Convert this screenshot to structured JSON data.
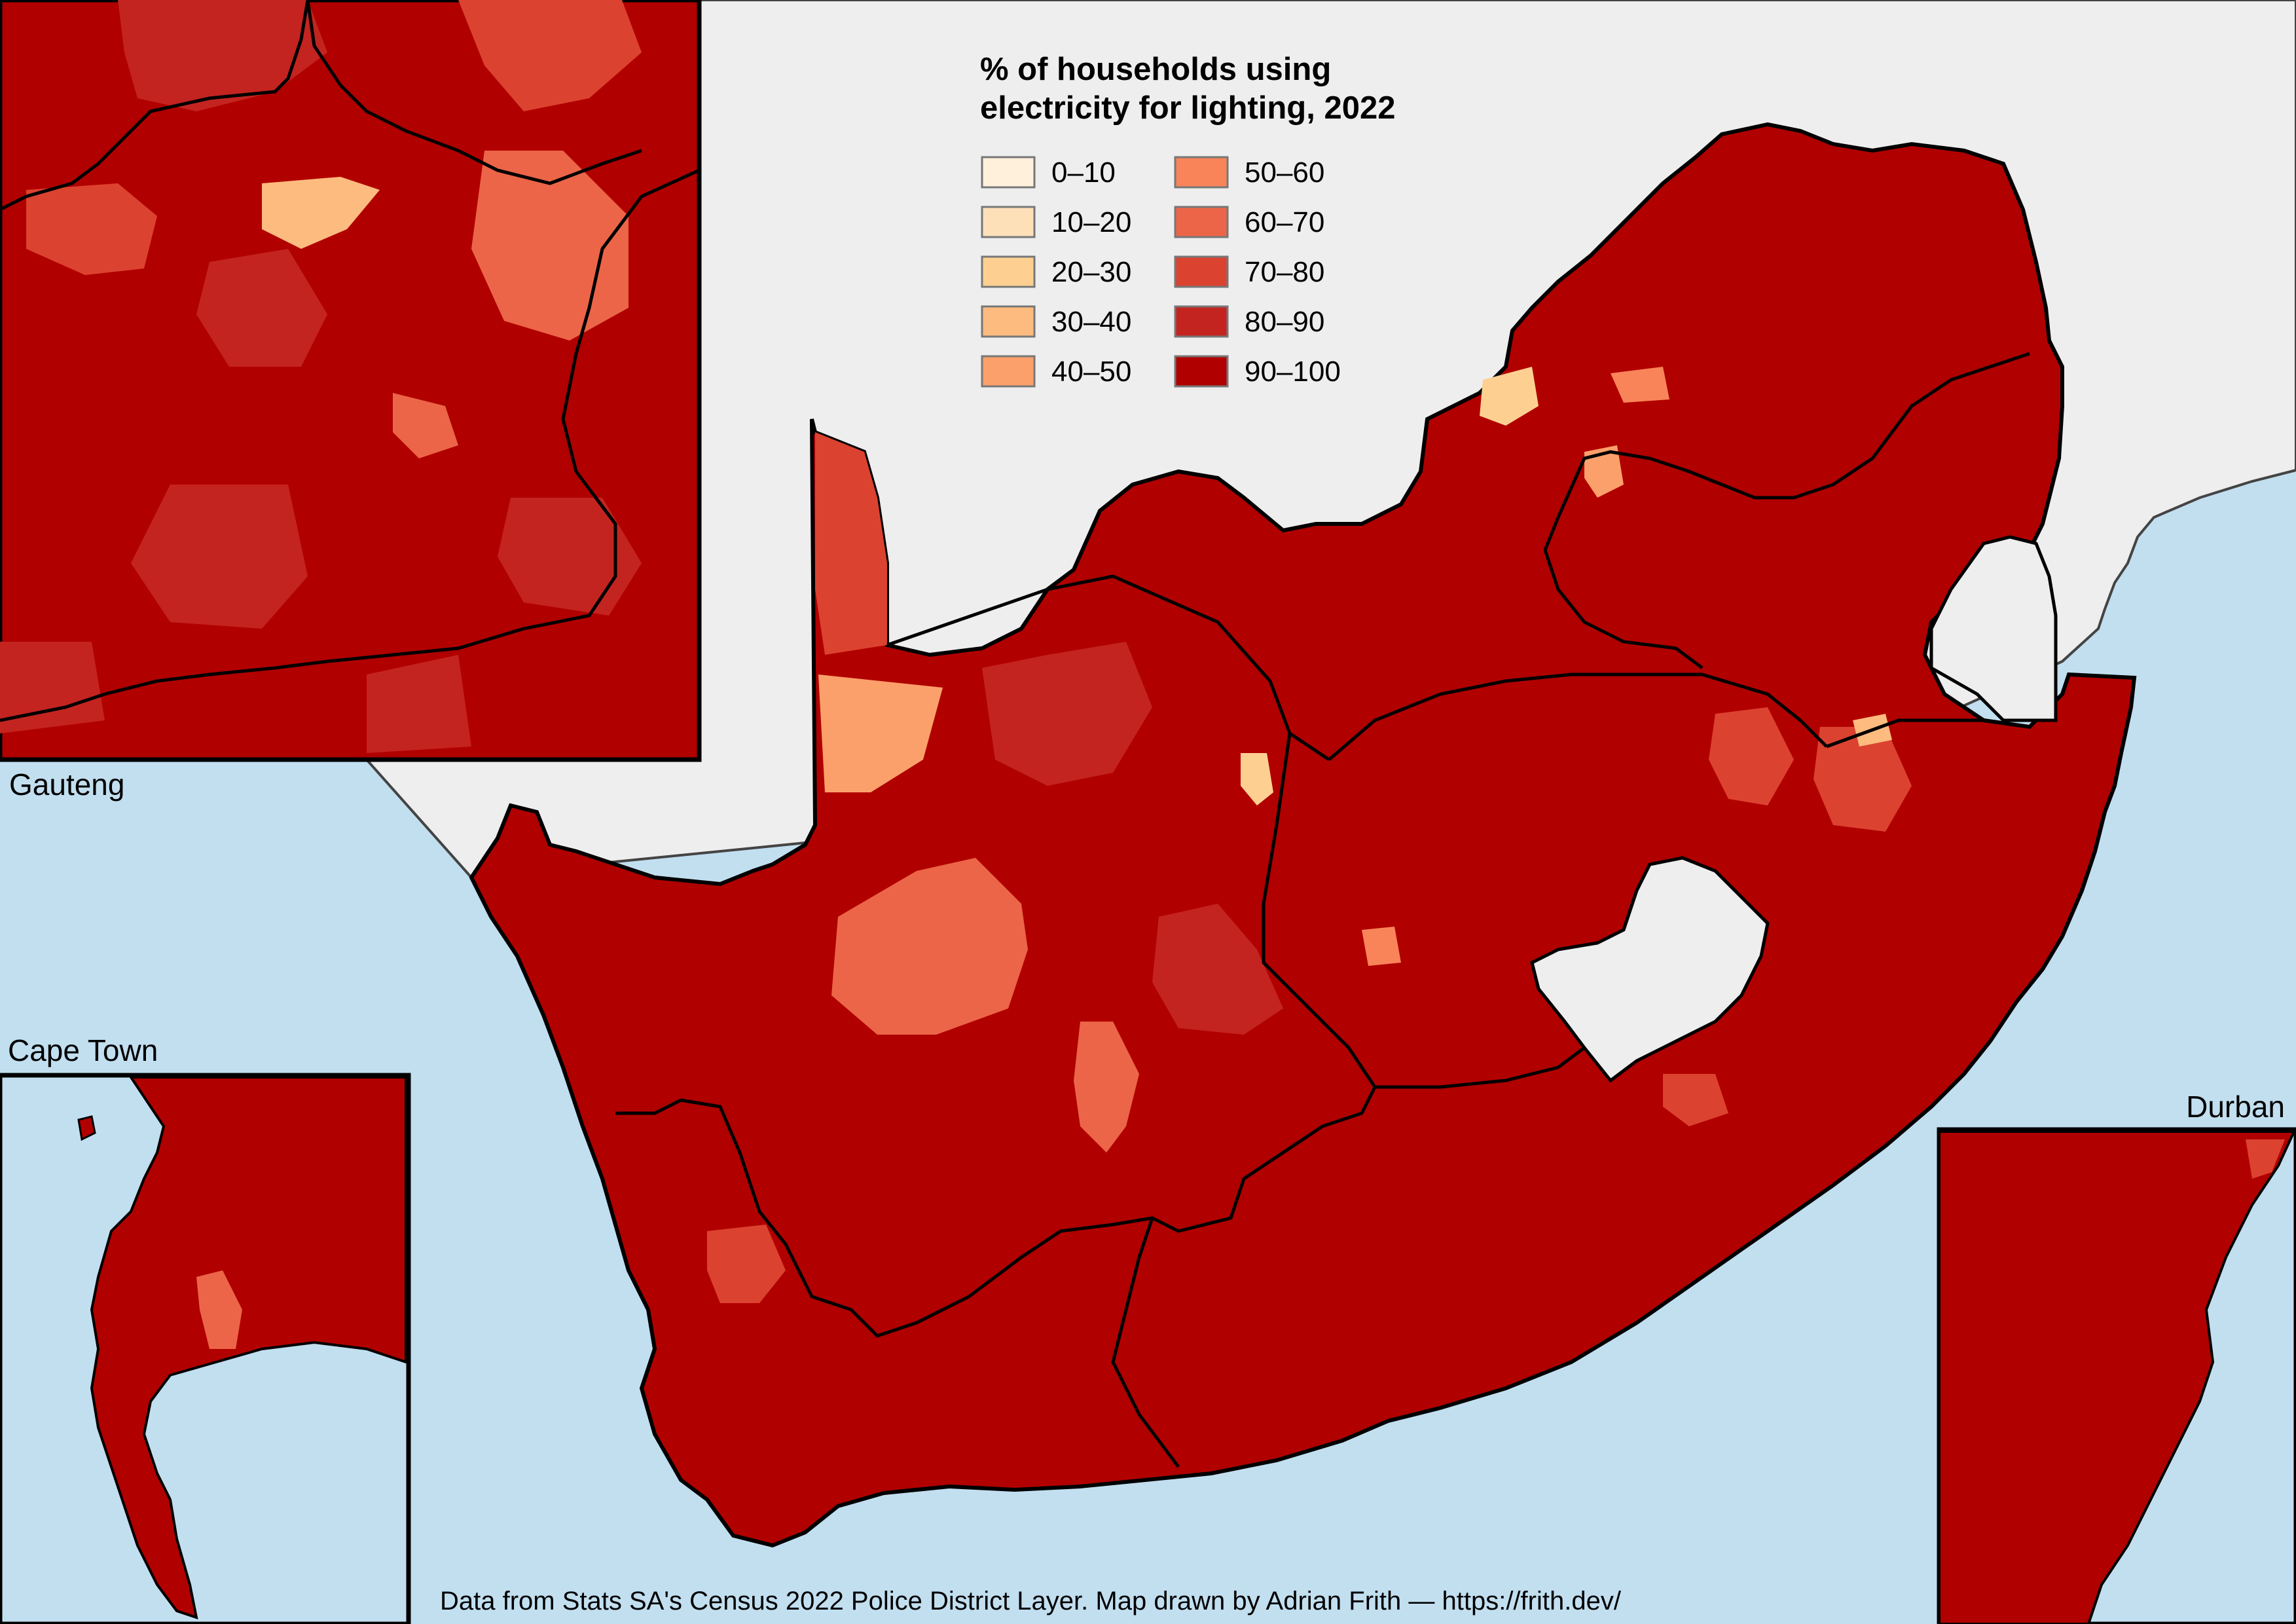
{
  "legend": {
    "title_line1": "% of households using",
    "title_line2": "electricity for lighting, 2022",
    "classes": [
      {
        "label": "0–10",
        "color": "#fff0dc"
      },
      {
        "label": "10–20",
        "color": "#fde0b8"
      },
      {
        "label": "20–30",
        "color": "#fdd091"
      },
      {
        "label": "30–40",
        "color": "#fdbb7f"
      },
      {
        "label": "40–50",
        "color": "#fca06b"
      },
      {
        "label": "50–60",
        "color": "#f9845a"
      },
      {
        "label": "60–70",
        "color": "#ec6548"
      },
      {
        "label": "70–80",
        "color": "#dc4230"
      },
      {
        "label": "80–90",
        "color": "#c42420"
      },
      {
        "label": "90–100",
        "color": "#b10000"
      }
    ]
  },
  "insets": {
    "gauteng": "Gauteng",
    "cape_town": "Cape Town",
    "durban": "Durban"
  },
  "credit": "Data from Stats SA's Census 2022 Police District Layer.  Map drawn by Adrian Frith — https://frith.dev/",
  "colors": {
    "ocean": "#c2dff0",
    "neighbouring_land": "#eeeeee",
    "border": "#000000"
  }
}
